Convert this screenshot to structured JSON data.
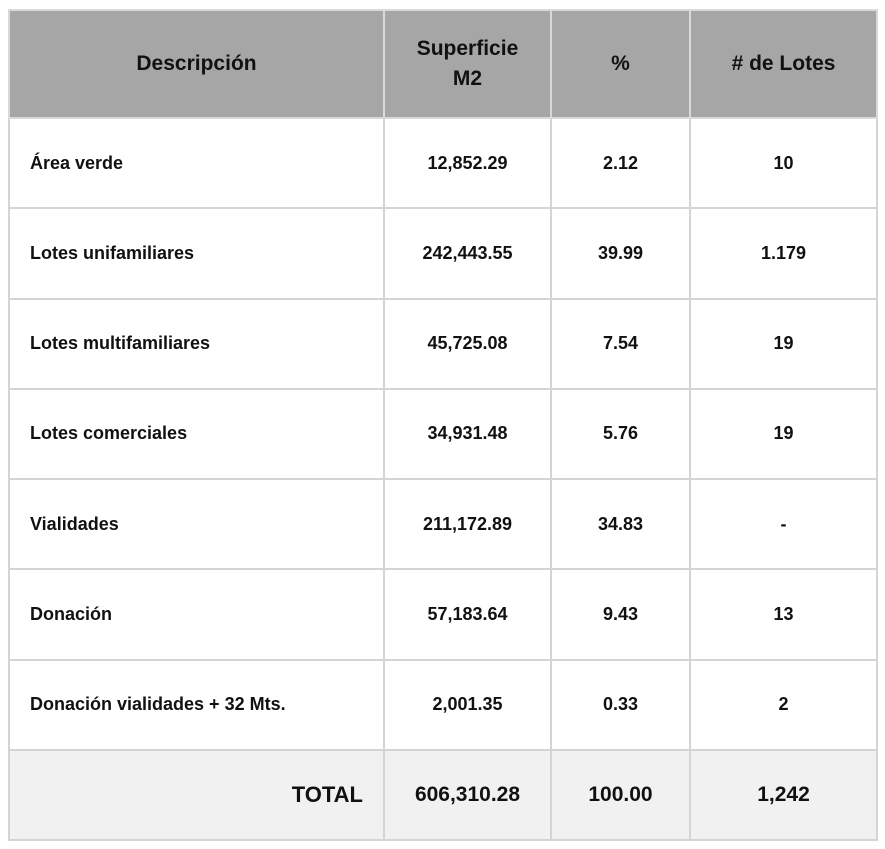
{
  "table": {
    "headers": {
      "description": "Descripción",
      "surface": "Superficie M2",
      "percent": "%",
      "lots": "# de Lotes"
    },
    "rows": [
      {
        "description": "Área verde",
        "surface": "12,852.29",
        "percent": "2.12",
        "lots": "10"
      },
      {
        "description": "Lotes unifamiliares",
        "surface": "242,443.55",
        "percent": "39.99",
        "lots": "1.179"
      },
      {
        "description": "Lotes multifamiliares",
        "surface": "45,725.08",
        "percent": "7.54",
        "lots": "19"
      },
      {
        "description": "Lotes comerciales",
        "surface": "34,931.48",
        "percent": "5.76",
        "lots": "19"
      },
      {
        "description": "Vialidades",
        "surface": "211,172.89",
        "percent": "34.83",
        "lots": "-"
      },
      {
        "description": "Donación",
        "surface": "57,183.64",
        "percent": "9.43",
        "lots": "13"
      },
      {
        "description": "Donación vialidades + 32 Mts.",
        "surface": "2,001.35",
        "percent": "0.33",
        "lots": "2"
      }
    ],
    "total": {
      "label": "TOTAL",
      "surface": "606,310.28",
      "percent": "100.00",
      "lots": "1,242"
    }
  },
  "colors": {
    "header_background": "#a6a6a6",
    "total_background": "#f1f1f1",
    "grid_lines": "#d4d4d4"
  }
}
